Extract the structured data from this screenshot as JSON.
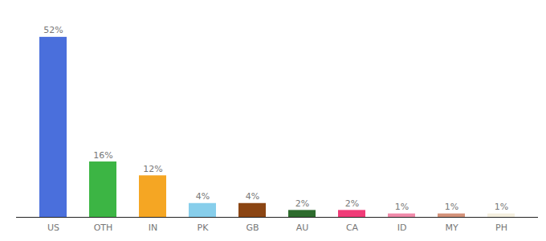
{
  "chart_data": {
    "type": "bar",
    "categories": [
      "US",
      "OTH",
      "IN",
      "PK",
      "GB",
      "AU",
      "CA",
      "ID",
      "MY",
      "PH"
    ],
    "values": [
      52,
      16,
      12,
      4,
      4,
      2,
      2,
      1,
      1,
      1
    ],
    "value_labels": [
      "52%",
      "16%",
      "12%",
      "4%",
      "4%",
      "2%",
      "2%",
      "1%",
      "1%",
      "1%"
    ],
    "colors": [
      "#4a6fdc",
      "#3cb544",
      "#f5a623",
      "#87ceeb",
      "#8b4513",
      "#2d6b2d",
      "#f03c78",
      "#f08aaa",
      "#d4927a",
      "#f5f0e0"
    ],
    "ylim": [
      0,
      58
    ],
    "data_labels": true,
    "tick_labels": "x",
    "grid": false
  }
}
